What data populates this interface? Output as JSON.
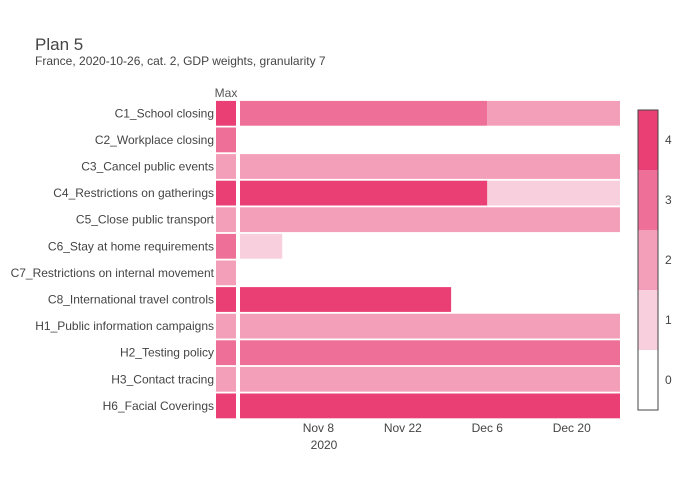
{
  "title": "Plan 5",
  "subtitle": "France, 2020-10-26, cat. 2, GDP weights, granularity 7",
  "max_column_label": "Max",
  "year_label": "2020",
  "colors": {
    "0": "#ffffff",
    "1": "#f8d0dd",
    "2": "#f49fba",
    "3": "#ee6f98",
    "4": "#e93f75"
  },
  "chart_data": {
    "type": "heatmap",
    "title": "Plan 5",
    "subtitle": "France, 2020-10-26, cat. 2, GDP weights, granularity 7",
    "x_start": "2020-10-26",
    "x_end": "2020-12-28",
    "x_ticks": [
      "Nov 8",
      "Nov 22",
      "Dec 6",
      "Dec 20"
    ],
    "x_tick_dates": [
      "2020-11-08",
      "2020-11-22",
      "2020-12-06",
      "2020-12-20"
    ],
    "colorscale_ticks": [
      0,
      1,
      2,
      3,
      4
    ],
    "zlim": [
      0,
      4
    ],
    "rows": [
      {
        "label": "C1_School closing",
        "max": 4,
        "segments": [
          {
            "start": "2020-10-26",
            "end": "2020-12-06",
            "value": 3
          },
          {
            "start": "2020-12-06",
            "end": "2020-12-28",
            "value": 2
          }
        ]
      },
      {
        "label": "C2_Workplace closing",
        "max": 3,
        "segments": []
      },
      {
        "label": "C3_Cancel public events",
        "max": 2,
        "segments": [
          {
            "start": "2020-10-26",
            "end": "2020-12-28",
            "value": 2
          }
        ]
      },
      {
        "label": "C4_Restrictions on gatherings",
        "max": 4,
        "segments": [
          {
            "start": "2020-10-26",
            "end": "2020-12-06",
            "value": 4
          },
          {
            "start": "2020-12-06",
            "end": "2020-12-28",
            "value": 1
          }
        ]
      },
      {
        "label": "C5_Close public transport",
        "max": 2,
        "segments": [
          {
            "start": "2020-10-26",
            "end": "2020-12-28",
            "value": 2
          }
        ]
      },
      {
        "label": "C6_Stay at home requirements",
        "max": 3,
        "segments": [
          {
            "start": "2020-10-26",
            "end": "2020-11-02",
            "value": 1
          }
        ]
      },
      {
        "label": "C7_Restrictions on internal movement",
        "max": 2,
        "segments": []
      },
      {
        "label": "C8_International travel controls",
        "max": 4,
        "segments": [
          {
            "start": "2020-10-26",
            "end": "2020-11-30",
            "value": 4
          }
        ]
      },
      {
        "label": "H1_Public information campaigns",
        "max": 2,
        "segments": [
          {
            "start": "2020-10-26",
            "end": "2020-12-28",
            "value": 2
          }
        ]
      },
      {
        "label": "H2_Testing policy",
        "max": 3,
        "segments": [
          {
            "start": "2020-10-26",
            "end": "2020-12-28",
            "value": 3
          }
        ]
      },
      {
        "label": "H3_Contact tracing",
        "max": 2,
        "segments": [
          {
            "start": "2020-10-26",
            "end": "2020-12-28",
            "value": 2
          }
        ]
      },
      {
        "label": "H6_Facial Coverings",
        "max": 4,
        "segments": [
          {
            "start": "2020-10-26",
            "end": "2020-12-28",
            "value": 4
          }
        ]
      }
    ]
  }
}
